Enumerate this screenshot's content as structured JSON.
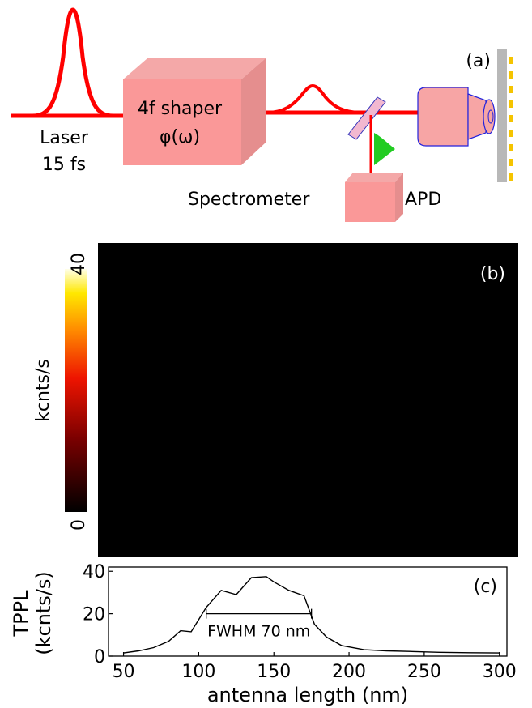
{
  "setup": {
    "panel_label": "(a)",
    "laser_label_line1": "Laser",
    "laser_label_line2": "15 fs",
    "shaper_label_line1": "4f shaper",
    "shaper_label_line2": "φ(ω)",
    "spectrometer_label": "Spectrometer",
    "apd_label": "APD"
  },
  "map": {
    "panel_label": "(b)",
    "colorbar_label": "kcnts/s",
    "colorbar_max": "40",
    "colorbar_min": "0",
    "columns": 32,
    "rows": 24
  },
  "chart_data": {
    "type": "line",
    "panel_label": "(c)",
    "xlabel": "antenna length (nm)",
    "ylabel_line1": "TPPL",
    "ylabel_line2": "(kcnts/s)",
    "xlim": [
      40,
      305
    ],
    "ylim": [
      0,
      42
    ],
    "x_ticks": [
      50,
      100,
      150,
      200,
      250,
      300
    ],
    "y_ticks": [
      0,
      20,
      40
    ],
    "annotation": "FWHM 70 nm",
    "fwhm_range": [
      105,
      175
    ],
    "fwhm_level": 20,
    "x": [
      50,
      60,
      70,
      80,
      88,
      95,
      105,
      115,
      125,
      135,
      145,
      150,
      160,
      170,
      177,
      185,
      195,
      210,
      225,
      240,
      260,
      280,
      300
    ],
    "y": [
      1.5,
      2.5,
      4,
      7,
      12,
      11.5,
      23,
      31,
      29,
      37,
      37.5,
      35,
      31,
      28.5,
      15,
      9,
      5,
      3,
      2.5,
      2.2,
      1.8,
      1.6,
      1.5
    ]
  }
}
